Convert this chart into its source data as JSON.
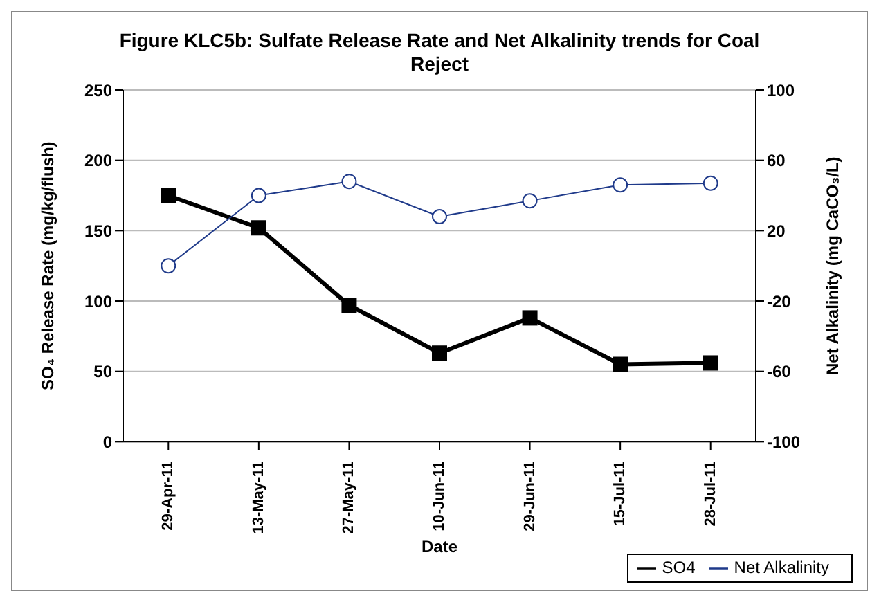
{
  "chart_data": {
    "type": "line",
    "title": "Figure KLC5b: Sulfate Release Rate and Net Alkalinity trends for Coal Reject",
    "xlabel": "Date",
    "ylabel": "SO₄ Release Rate (mg/kg/flush)",
    "y2label": "Net Alkalinity (mg CaCO₃/L)",
    "categories": [
      "29-Apr-11",
      "13-May-11",
      "27-May-11",
      "10-Jun-11",
      "29-Jun-11",
      "15-Jul-11",
      "28-Jul-11"
    ],
    "series": [
      {
        "name": "SO4",
        "color": "#000000",
        "values": [
          175,
          152,
          97,
          63,
          88,
          55,
          56
        ],
        "marker": "square"
      },
      {
        "name": "Net Alkalinity",
        "color": "#1f3a8a",
        "values": [
          0,
          40,
          48,
          28,
          37,
          46,
          47
        ],
        "axis": "y2",
        "marker": "circle"
      }
    ],
    "ylim": [
      0,
      250
    ],
    "yticks": [
      0,
      50,
      100,
      150,
      200,
      250
    ],
    "y2lim": [
      -100,
      100
    ],
    "y2ticks": [
      -100,
      -60,
      -20,
      20,
      60,
      100
    ],
    "grid": "y",
    "legend": "bottom right"
  }
}
